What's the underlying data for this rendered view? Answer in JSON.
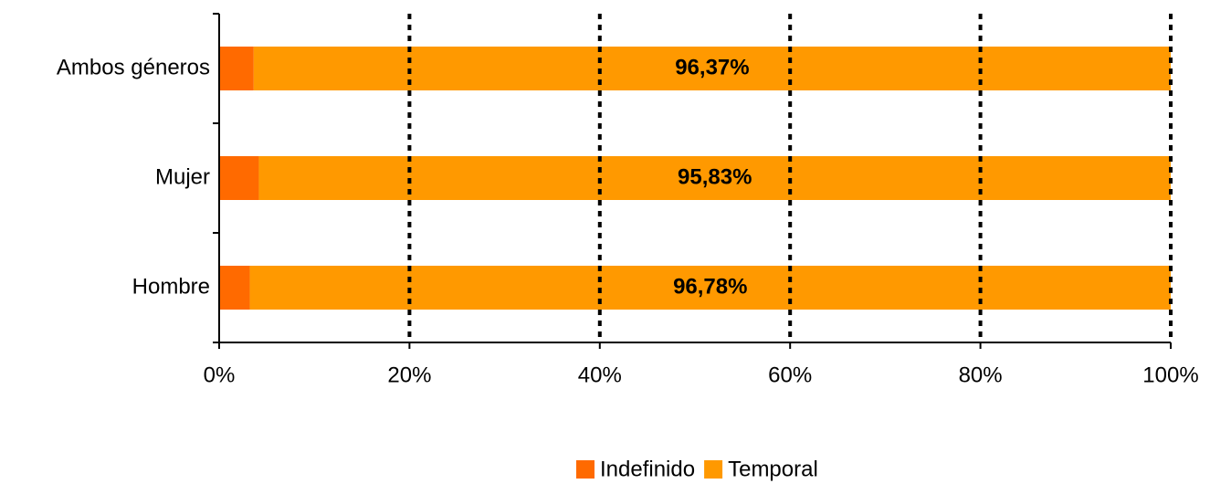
{
  "chart_data": {
    "type": "stacked_barh",
    "categories": [
      "Ambos géneros",
      "Mujer",
      "Hombre"
    ],
    "series": [
      {
        "name": "Indefinido",
        "color": "#ff6a00",
        "values": [
          3.63,
          4.17,
          3.22
        ]
      },
      {
        "name": "Temporal",
        "color": "#ff9900",
        "values": [
          96.37,
          95.83,
          96.78
        ],
        "value_labels": [
          "96,37%",
          "95,83%",
          "96,78%"
        ]
      }
    ],
    "xlim": [
      0,
      100
    ],
    "xticks": [
      {
        "value": 0,
        "label": "0%"
      },
      {
        "value": 20,
        "label": "20%"
      },
      {
        "value": 40,
        "label": "40%"
      },
      {
        "value": 60,
        "label": "60%"
      },
      {
        "value": 80,
        "label": "80%"
      },
      {
        "value": 100,
        "label": "100%"
      }
    ],
    "grid": true,
    "legend": "bottom"
  }
}
